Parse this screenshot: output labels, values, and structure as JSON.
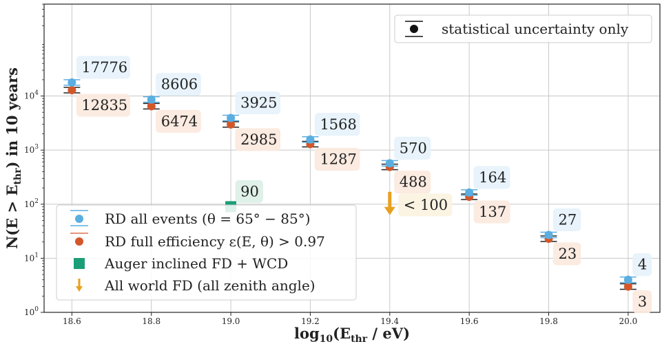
{
  "chart_data": {
    "type": "scatter",
    "title": "",
    "xlabel": "log10(Ethr / eV)",
    "ylabel": "N(E > Ethr) in 10 years",
    "xlim": [
      18.53,
      20.08
    ],
    "ylim": [
      1,
      500000
    ],
    "yscale": "log",
    "grid": true,
    "x_ticks": [
      "18.6",
      "18.8",
      "19.0",
      "19.2",
      "19.4",
      "19.6",
      "19.8",
      "20.0"
    ],
    "y_ticks": [
      "10^0",
      "10^1",
      "10^2",
      "10^3",
      "10^4"
    ],
    "series": [
      {
        "name": "RD all events (θ = 65° − 85°)",
        "color": "#5aaee0",
        "marker": "circle",
        "x": [
          18.6,
          18.8,
          19.0,
          19.2,
          19.4,
          19.6,
          19.8,
          20.0
        ],
        "y": [
          17776,
          8606,
          3925,
          1568,
          570,
          164,
          27,
          4
        ],
        "labels": [
          "17776",
          "8606",
          "3925",
          "1568",
          "570",
          "164",
          "27",
          "4"
        ]
      },
      {
        "name": "RD full efficiency ε(E, θ) > 0.97",
        "color": "#d4572a",
        "marker": "circle",
        "x": [
          18.6,
          18.8,
          19.0,
          19.2,
          19.4,
          19.6,
          19.8,
          20.0
        ],
        "y": [
          12835,
          6474,
          2985,
          1287,
          488,
          137,
          23,
          3
        ],
        "labels": [
          "12835",
          "6474",
          "2985",
          "1287",
          "488",
          "137",
          "23",
          "3"
        ]
      },
      {
        "name": "Auger inclined FD + WCD",
        "color": "#1b9e77",
        "marker": "square",
        "x": [
          19.0
        ],
        "y": [
          90
        ],
        "labels": [
          "90"
        ]
      },
      {
        "name": "All world FD (all zenith angle)",
        "color": "#e8a020",
        "marker": "arrow-down",
        "x": [
          19.4
        ],
        "y": [
          100
        ],
        "labels": [
          "< 100"
        ]
      }
    ],
    "legend": {
      "position": "lower-left",
      "entries": [
        "RD all events (θ = 65° − 85°)",
        "RD full efficiency ε(E, θ) > 0.97",
        "Auger inclined FD + WCD",
        "All world FD (all zenith angle)"
      ]
    },
    "secondary_legend": {
      "position": "top-right",
      "text": "statistical uncertainty only"
    }
  }
}
